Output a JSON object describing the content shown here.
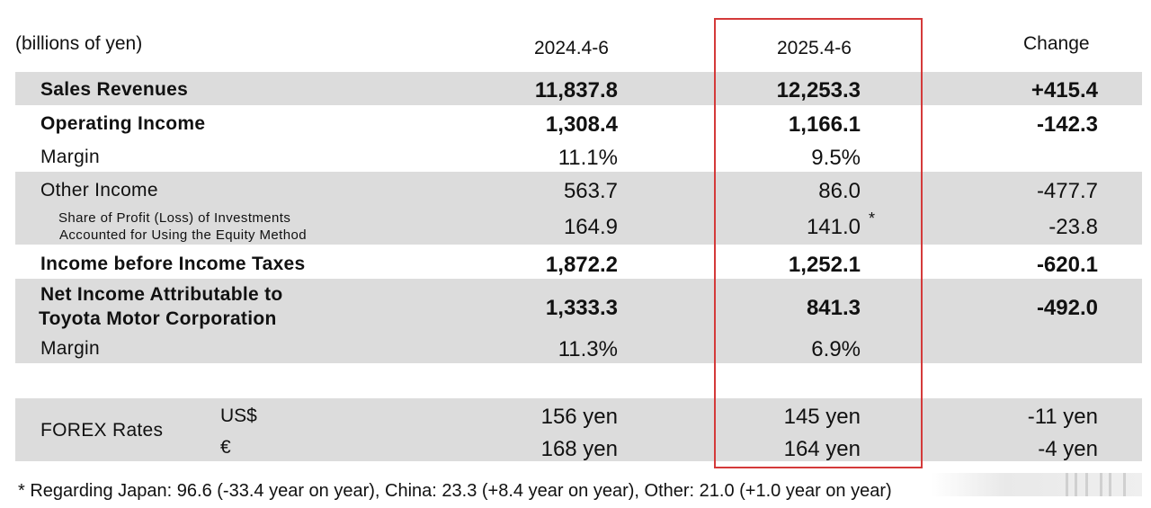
{
  "header": {
    "unit_label": "(billions of yen)",
    "col_prev": "2024.4-6",
    "col_curr": "2025.4-6",
    "col_change": "Change"
  },
  "rows": {
    "sales": {
      "label": "Sales Revenues",
      "prev": "11,837.8",
      "curr": "12,253.3",
      "change": "+415.4"
    },
    "op_income": {
      "label": "Operating Income",
      "prev": "1,308.4",
      "curr": "1,166.1",
      "change": "-142.3"
    },
    "op_margin": {
      "label": "Margin",
      "prev": "11.1%",
      "curr": "9.5%"
    },
    "other_income": {
      "label": "Other Income",
      "prev": "563.7",
      "curr": "86.0",
      "change": "-477.7"
    },
    "equity_method": {
      "label_line1": "Share of Profit (Loss) of Investments",
      "label_line2": "Accounted for Using the Equity Method",
      "prev": "164.9",
      "curr": "141.0",
      "note_mark": "*",
      "change": "-23.8"
    },
    "pretax": {
      "label": "Income before Income Taxes",
      "prev": "1,872.2",
      "curr": "1,252.1",
      "change": "-620.1"
    },
    "net_income": {
      "label_line1": "Net Income Attributable to",
      "label_line2": "Toyota Motor Corporation",
      "prev": "1,333.3",
      "curr": "841.3",
      "change": "-492.0"
    },
    "net_margin": {
      "label": "Margin",
      "prev": "11.3%",
      "curr": "6.9%"
    }
  },
  "forex": {
    "label": "FOREX Rates",
    "usd": {
      "currency": "US$",
      "prev": "156 yen",
      "curr": "145 yen",
      "change": "-11 yen"
    },
    "eur": {
      "currency": "€",
      "prev": "168 yen",
      "curr": "164 yen",
      "change": "-4 yen"
    }
  },
  "footnote": "* Regarding Japan: 96.6 (-33.4 year on year), China: 23.3  (+8.4 year on year), Other: 21.0 (+1.0 year on year)",
  "colors": {
    "band": "#dcdcdc",
    "highlight_border": "#d43a3a",
    "text": "#111111"
  }
}
